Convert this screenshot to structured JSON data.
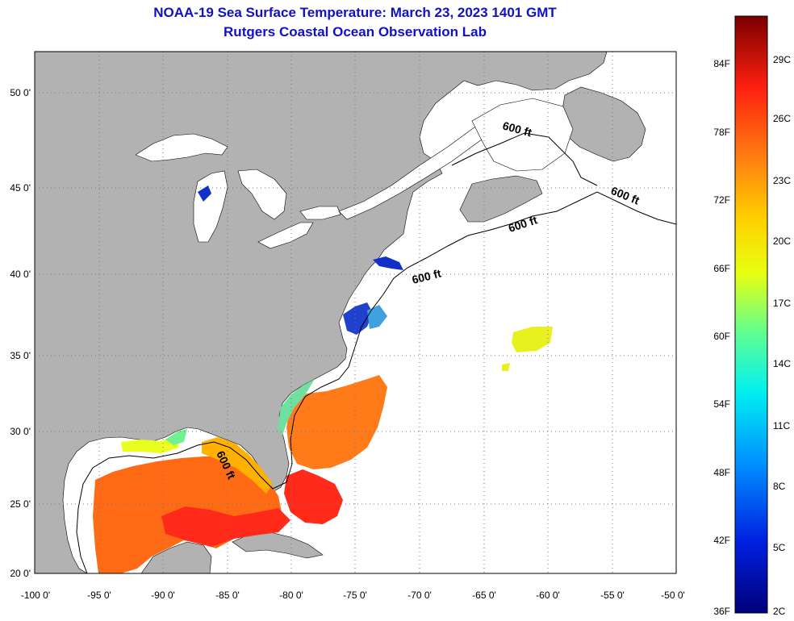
{
  "title_line1": "NOAA-19 Sea Surface Temperature:  March 23, 2023 1401 GMT",
  "title_line2": "Rutgers Coastal Ocean Observation Lab",
  "lat_labels": [
    "50 0'",
    "45 0'",
    "40 0'",
    "35 0'",
    "30 0'",
    "25 0'",
    "20 0'"
  ],
  "lon_labels": [
    "-100 0'",
    "-95 0'",
    "-90 0'",
    "-85 0'",
    "-80 0'",
    "-75 0'",
    "-70 0'",
    "-65 0'",
    "-60 0'",
    "-55 0'",
    "-50 0'"
  ],
  "isobath_label": "600 ft",
  "colorbar": {
    "fahrenheit": [
      "84F",
      "78F",
      "72F",
      "66F",
      "60F",
      "54F",
      "48F",
      "42F",
      "36F"
    ],
    "celsius": [
      "29C",
      "26C",
      "23C",
      "20C",
      "17C",
      "14C",
      "11C",
      "8C",
      "5C",
      "2C"
    ]
  },
  "colors": {
    "title": "#1010c8",
    "land": "#b2b2b2",
    "ocean": "#ffffff",
    "warm": "#ff5a14",
    "hot": "#ff1e1e",
    "cold": "#1030c8"
  }
}
